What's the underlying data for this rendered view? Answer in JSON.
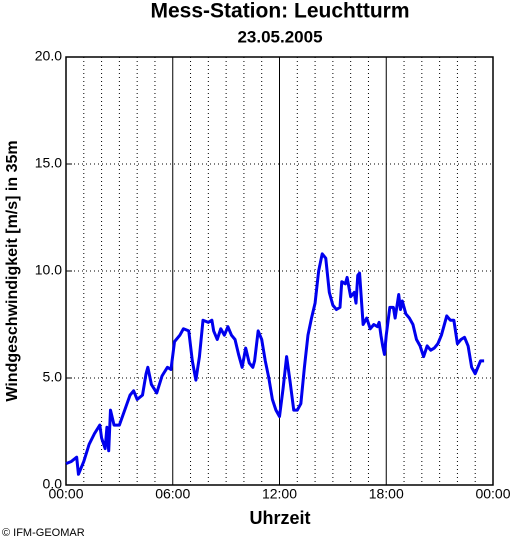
{
  "chart_data": {
    "type": "line",
    "title": "Mess-Station: Leuchtturm",
    "subtitle": "23.05.2005",
    "xlabel": "Uhrzeit",
    "ylabel": "Windgeschwindigkeit [m/s] in 35m",
    "credit": "© IFM-GEOMAR",
    "xlim": [
      0,
      24
    ],
    "ylim": [
      0,
      20
    ],
    "xticks": [
      {
        "value": 0,
        "label": "00:00"
      },
      {
        "value": 6,
        "label": "06:00"
      },
      {
        "value": 12,
        "label": "12:00"
      },
      {
        "value": 18,
        "label": "18:00"
      },
      {
        "value": 24,
        "label": "00:00"
      }
    ],
    "xminorticks": [
      1,
      2,
      3,
      4,
      5,
      7,
      8,
      9,
      10,
      11,
      13,
      14,
      15,
      16,
      17,
      19,
      20,
      21,
      22,
      23
    ],
    "yticks": [
      {
        "value": 0,
        "label": "0.0"
      },
      {
        "value": 5,
        "label": "5.0"
      },
      {
        "value": 10,
        "label": "10.0"
      },
      {
        "value": 15,
        "label": "15.0"
      },
      {
        "value": 20,
        "label": "20.0"
      }
    ],
    "grid": true,
    "x": [
      0,
      0.3,
      0.6,
      0.7,
      1,
      1.3,
      1.6,
      1.9,
      2.0,
      2.2,
      2.3,
      2.4,
      2.5,
      2.7,
      3.0,
      3.3,
      3.6,
      3.8,
      4.0,
      4.3,
      4.5,
      4.6,
      4.8,
      5.1,
      5.4,
      5.7,
      5.9,
      6.1,
      6.4,
      6.6,
      6.9,
      7.1,
      7.3,
      7.5,
      7.7,
      8.0,
      8.2,
      8.3,
      8.5,
      8.7,
      8.9,
      9.1,
      9.3,
      9.5,
      9.7,
      9.9,
      10.1,
      10.3,
      10.5,
      10.6,
      10.8,
      11.0,
      11.2,
      11.4,
      11.6,
      11.8,
      12.0,
      12.2,
      12.4,
      12.6,
      12.8,
      13.0,
      13.2,
      13.4,
      13.6,
      13.8,
      14.0,
      14.2,
      14.4,
      14.6,
      14.8,
      15.0,
      15.2,
      15.4,
      15.5,
      15.7,
      15.8,
      16.0,
      16.2,
      16.3,
      16.4,
      16.5,
      16.7,
      16.9,
      17.1,
      17.3,
      17.5,
      17.6,
      17.7,
      17.8,
      17.9,
      18.0,
      18.2,
      18.4,
      18.5,
      18.7,
      18.8,
      18.9,
      19.1,
      19.3,
      19.5,
      19.7,
      19.9,
      20.1,
      20.3,
      20.5,
      20.7,
      20.9,
      21.1,
      21.4,
      21.6,
      21.8,
      22.0,
      22.2,
      22.4,
      22.6,
      22.8,
      23.0,
      23.3,
      23.5
    ],
    "series": [
      {
        "name": "Windgeschwindigkeit",
        "color": "#0000ee",
        "values": [
          1.0,
          1.1,
          1.3,
          0.5,
          1.1,
          1.9,
          2.4,
          2.8,
          2.2,
          1.7,
          2.7,
          1.6,
          3.5,
          2.8,
          2.8,
          3.5,
          4.2,
          4.4,
          4.0,
          4.2,
          5.2,
          5.5,
          4.7,
          4.3,
          5.1,
          5.5,
          5.4,
          6.7,
          7.0,
          7.3,
          7.2,
          5.8,
          4.9,
          6.0,
          7.7,
          7.6,
          7.7,
          7.2,
          6.8,
          7.3,
          7.0,
          7.4,
          7.0,
          6.8,
          6.1,
          5.5,
          6.4,
          5.7,
          5.5,
          5.8,
          7.2,
          6.8,
          5.8,
          5.0,
          4.0,
          3.5,
          3.2,
          4.5,
          6.0,
          4.8,
          3.5,
          3.5,
          3.8,
          5.5,
          7.0,
          7.8,
          8.5,
          10.0,
          10.8,
          10.6,
          9.0,
          8.4,
          8.2,
          8.3,
          9.5,
          9.4,
          9.7,
          8.8,
          9.0,
          8.5,
          9.8,
          9.9,
          7.5,
          7.8,
          7.3,
          7.5,
          7.4,
          7.6,
          7.0,
          6.5,
          6.1,
          7.0,
          8.3,
          8.3,
          7.8,
          8.9,
          8.2,
          8.6,
          8.0,
          7.8,
          7.5,
          6.8,
          6.5,
          6.0,
          6.5,
          6.3,
          6.4,
          6.6,
          7.0,
          7.9,
          7.7,
          7.7,
          6.6,
          6.8,
          6.9,
          6.5,
          5.5,
          5.2,
          5.8,
          5.8
        ]
      }
    ]
  }
}
